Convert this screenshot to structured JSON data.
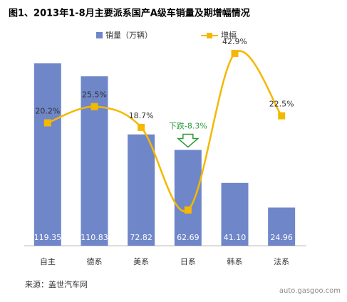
{
  "chart_data": {
    "type": "bar-line",
    "title": "图1、2013年1-8月主要派系国产A级车销量及期增幅情况",
    "categories": [
      "自主",
      "德系",
      "美系",
      "日系",
      "韩系",
      "法系"
    ],
    "series": [
      {
        "name": "销量（万辆）",
        "color": "#6f87c9",
        "values": [
          119.35,
          110.83,
          72.82,
          62.69,
          41.1,
          24.96
        ],
        "value_labels": [
          "119.35",
          "110.83",
          "72.82",
          "62.69",
          "41.10",
          "24.96"
        ]
      },
      {
        "name": "增幅",
        "color": "#f5b800",
        "axis": "y2",
        "values": [
          20.2,
          25.5,
          18.7,
          -8.3,
          42.9,
          22.5
        ],
        "value_labels": [
          "20.2%",
          "25.5%",
          "18.7%",
          "下跌-8.3%",
          "42.9%",
          "22.5%"
        ]
      }
    ],
    "ylim": [
      0,
      130
    ],
    "y2lim": [
      -20,
      45
    ],
    "source": "来源：盖世汽车网",
    "watermark": "auto.gasgoo.com"
  }
}
